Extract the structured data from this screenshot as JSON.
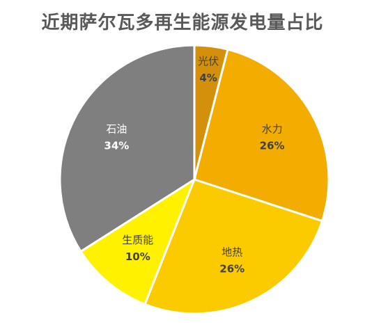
{
  "chart_data": {
    "type": "pie",
    "title": "近期萨尔瓦多再生能源发电量占比",
    "slices": [
      {
        "name": "光伏",
        "value": 4,
        "label": "4%",
        "color": "#D4900A",
        "text_color": "#404040"
      },
      {
        "name": "水力",
        "value": 26,
        "label": "26%",
        "color": "#F3AC00",
        "text_color": "#404040"
      },
      {
        "name": "地热",
        "value": 26,
        "label": "26%",
        "color": "#FBCB00",
        "text_color": "#404040"
      },
      {
        "name": "生质能",
        "value": 10,
        "label": "10%",
        "color": "#FFF100",
        "text_color": "#404040"
      },
      {
        "name": "石油",
        "value": 34,
        "label": "34%",
        "color": "#7F7F7F",
        "text_color": "#FFFFFF"
      }
    ],
    "start_angle": "12 o'clock",
    "direction": "clockwise"
  }
}
